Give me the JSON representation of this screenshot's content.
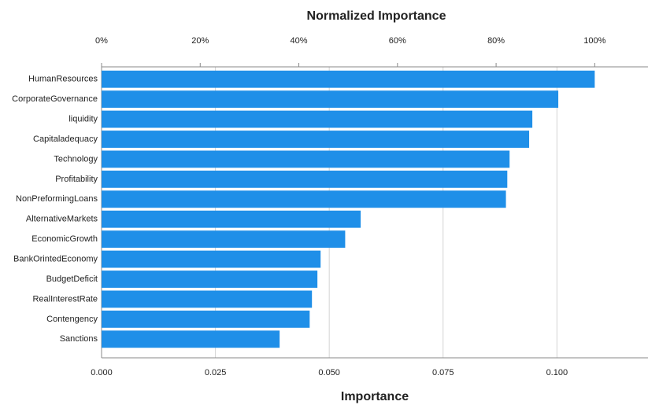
{
  "chart_data": {
    "type": "barh",
    "title": "Normalized Importance",
    "xlabel": "Importance",
    "categories": [
      "HumanResources",
      "CorporateGovernance",
      "liquidity",
      "Capitaladequacy",
      "Technology",
      "Profitability",
      "NonPreformingLoans",
      "AlternativeMarkets",
      "EconomicGrowth",
      "BankOrintedEconomy",
      "BudgetDeficit",
      "RealInterestRate",
      "Contengency",
      "Sanctions"
    ],
    "values": [
      0.1083,
      0.1003,
      0.0946,
      0.0939,
      0.0896,
      0.0891,
      0.0888,
      0.0569,
      0.0535,
      0.0481,
      0.0474,
      0.0462,
      0.0457,
      0.0391
    ],
    "color": "#1f8fe8",
    "xlim": [
      0,
      0.12
    ],
    "xticks": [
      {
        "value": 0,
        "label": "0.000"
      },
      {
        "value": 0.025,
        "label": "0.025"
      },
      {
        "value": 0.05,
        "label": "0.050"
      },
      {
        "value": 0.075,
        "label": "0.075"
      },
      {
        "value": 0.1,
        "label": "0.100"
      }
    ],
    "x2lim": [
      0,
      110.8
    ],
    "x2ticks": [
      {
        "value": 0,
        "label": "0%"
      },
      {
        "value": 20,
        "label": "20%"
      },
      {
        "value": 40,
        "label": "40%"
      },
      {
        "value": 60,
        "label": "60%"
      },
      {
        "value": 80,
        "label": "80%"
      },
      {
        "value": 100,
        "label": "100%"
      }
    ],
    "grid": true
  }
}
